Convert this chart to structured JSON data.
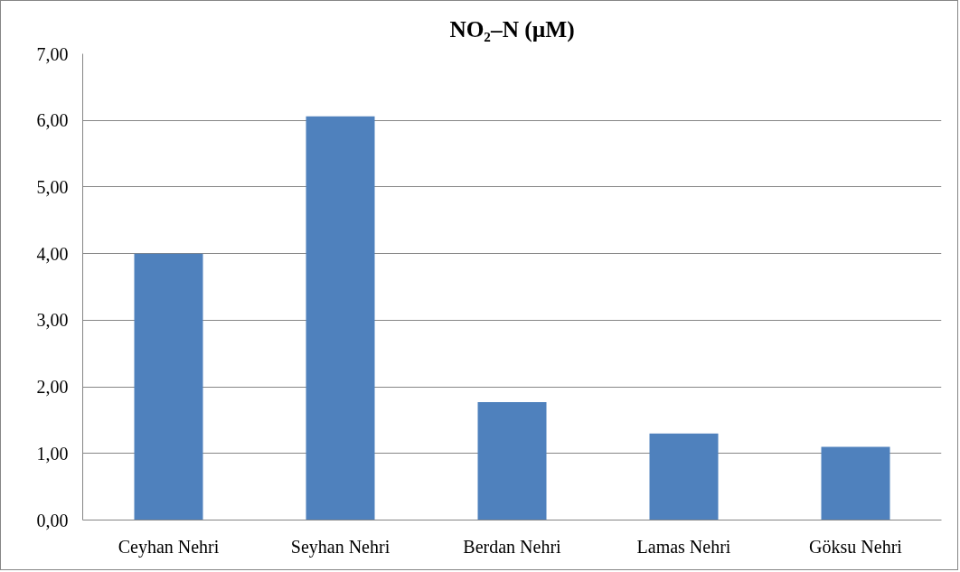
{
  "chart_data": {
    "type": "bar",
    "title": "NO₂–N (µM)",
    "categories": [
      "Ceyhan Nehri",
      "Seyhan Nehri",
      "Berdan Nehri",
      "Lamas Nehri",
      "Göksu Nehri"
    ],
    "values": [
      4.0,
      6.06,
      1.77,
      1.3,
      1.1
    ],
    "color": "#4f81bd",
    "ylim": [
      0,
      7
    ],
    "yticks": [
      {
        "value": 0,
        "label": "0,00"
      },
      {
        "value": 1,
        "label": "1,00"
      },
      {
        "value": 2,
        "label": "2,00"
      },
      {
        "value": 3,
        "label": "3,00"
      },
      {
        "value": 4,
        "label": "4,00"
      },
      {
        "value": 5,
        "label": "5,00"
      },
      {
        "value": 6,
        "label": "6,00"
      },
      {
        "value": 7,
        "label": "7,00"
      }
    ],
    "grid": "y"
  }
}
